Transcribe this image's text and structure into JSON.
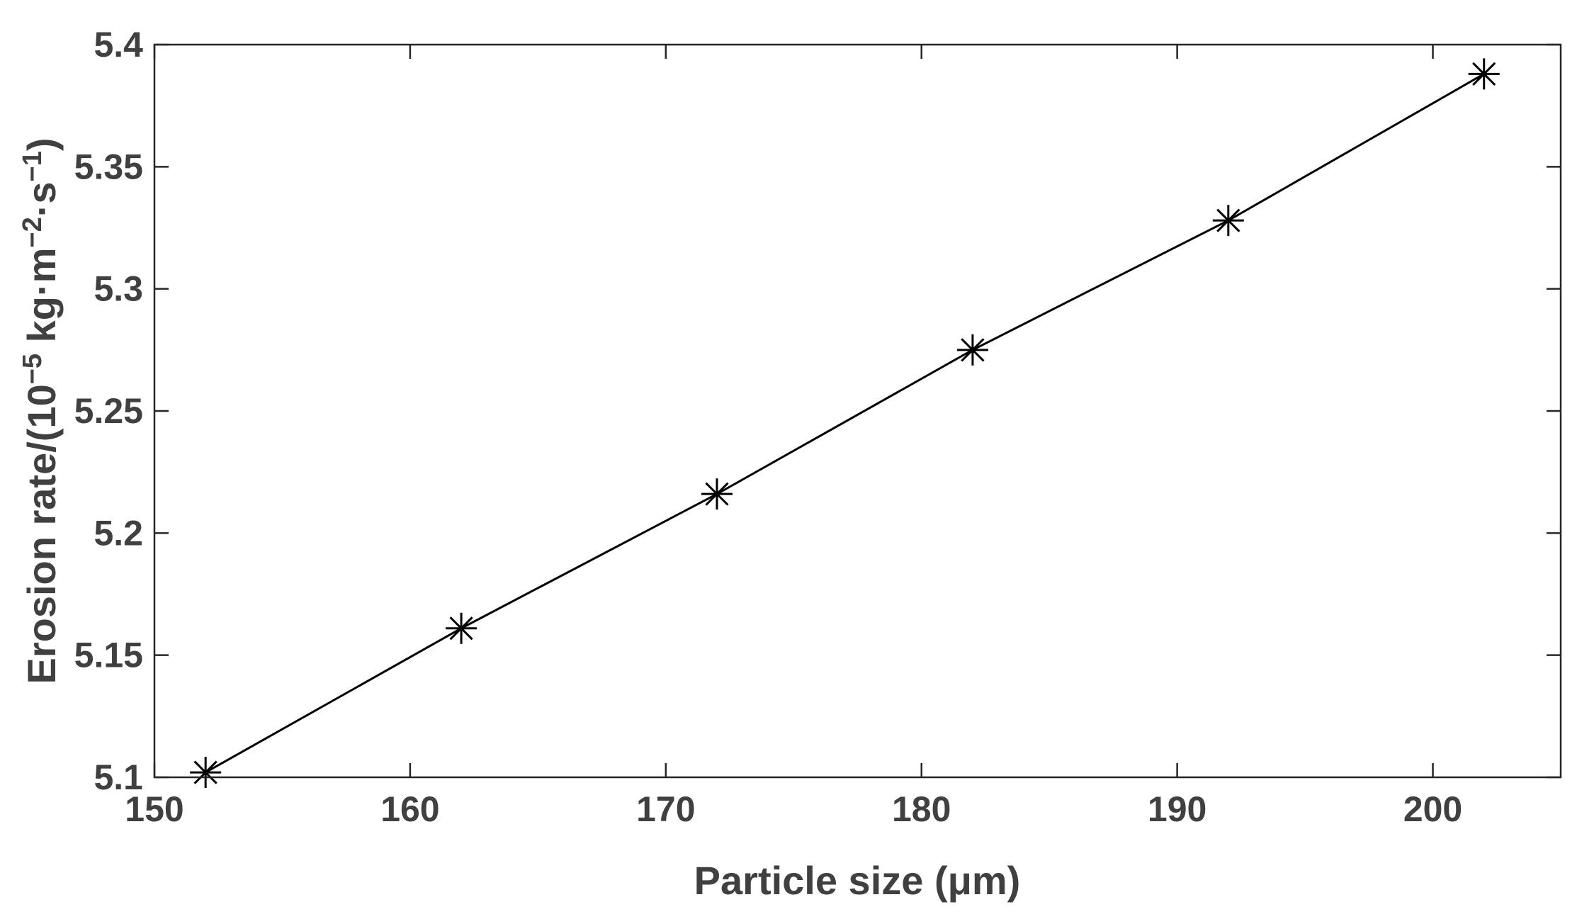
{
  "chart_data": {
    "type": "line",
    "title": "",
    "xlabel": "Particle size (μm)",
    "ylabel": {
      "prefix": "Erosion rate/(10",
      "exp1": "−5",
      "mid": " kg·m",
      "exp2": "−2",
      "mid2": "·s",
      "exp3": "−1",
      "suffix": ")"
    },
    "xlim": [
      150,
      205
    ],
    "ylim": [
      5.1,
      5.4
    ],
    "xticks": [
      150,
      160,
      170,
      180,
      190,
      200
    ],
    "yticks": [
      5.1,
      5.15,
      5.2,
      5.25,
      5.3,
      5.35,
      5.4
    ],
    "xtick_labels": [
      "150",
      "160",
      "170",
      "180",
      "190",
      "200"
    ],
    "ytick_labels": [
      "5.1",
      "5.15",
      "5.2",
      "5.25",
      "5.3",
      "5.35",
      "5.4"
    ],
    "grid": false,
    "marker": "asterisk",
    "series": [
      {
        "color": "#000000",
        "x": [
          152,
          162,
          172,
          182,
          192,
          202
        ],
        "y": [
          5.102,
          5.161,
          5.216,
          5.275,
          5.328,
          5.388
        ]
      }
    ]
  }
}
